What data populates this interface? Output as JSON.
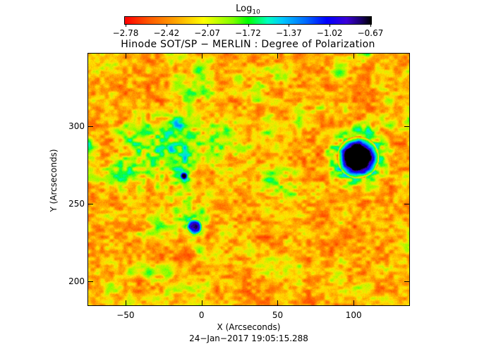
{
  "colorbar": {
    "label": "Log",
    "label_sub": "10",
    "ticks": [
      "-2.78",
      "-2.42",
      "-2.07",
      "-1.72",
      "-1.37",
      "-1.02",
      "-0.67"
    ],
    "colors": [
      "#ff0000",
      "#ffa000",
      "#ffff00",
      "#00ff00",
      "#00c8ff",
      "#0000ff",
      "#1a0066",
      "#000000"
    ]
  },
  "chart_data": {
    "type": "heatmap",
    "title": "Hinode SOT/SP − MERLIN : Degree of Polarization",
    "xlabel": "X (Arcseconds)",
    "ylabel": "Y (Arcseconds)",
    "xlim": [
      -75,
      137
    ],
    "ylim": [
      184,
      347
    ],
    "xticks": [
      -50,
      0,
      50,
      100
    ],
    "xtick_labels": [
      "−50",
      "0",
      "50",
      "100"
    ],
    "yticks": [
      200,
      250,
      300
    ],
    "ytick_labels": [
      "200",
      "250",
      "300"
    ],
    "value_range_log10": [
      -2.78,
      -0.67
    ],
    "features": [
      {
        "name": "sunspot",
        "x": 103,
        "y": 280,
        "peak": -0.67
      },
      {
        "name": "pore",
        "x": -5,
        "y": 235,
        "peak": -1.0
      },
      {
        "name": "pore",
        "x": -12,
        "y": 268,
        "peak": -1.1
      }
    ],
    "date": "24−Jan−2017 19:05:15.288"
  }
}
